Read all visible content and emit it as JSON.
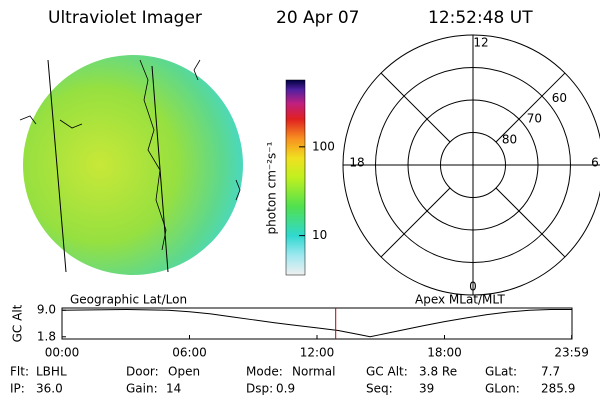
{
  "header": {
    "title": "Ultraviolet Imager",
    "date": "20 Apr 07",
    "time": "12:52:48 UT"
  },
  "left_panel": {
    "label": "Geographic Lat/Lon"
  },
  "colorbar": {
    "label": "photon cm⁻²s⁻¹",
    "scale": "log",
    "lim": [
      3.6,
      566
    ],
    "ticks": [
      10,
      100
    ]
  },
  "polar": {
    "label": "Apex MLat/MLT",
    "outer_lat": 50,
    "rings": [
      60,
      70,
      80
    ],
    "hours": [
      "12",
      "18",
      "6",
      "0"
    ]
  },
  "chart_data": {
    "type": "line",
    "ylabel": "GC Alt",
    "x": [
      0,
      3,
      5,
      6,
      7,
      8,
      9,
      10,
      11,
      12,
      13,
      14,
      14.5,
      15,
      16,
      17,
      18,
      19,
      20,
      21,
      22,
      23,
      24
    ],
    "series": [
      {
        "color": "#000000",
        "values": [
          9.0,
          9.2,
          9.0,
          8.6,
          8.0,
          7.2,
          6.4,
          5.6,
          4.9,
          4.2,
          3.5,
          2.4,
          1.8,
          2.4,
          3.6,
          4.8,
          5.9,
          6.9,
          7.8,
          8.5,
          9.0,
          9.2,
          9.2
        ]
      }
    ],
    "xlim": [
      0,
      24
    ],
    "ylim": [
      1.2,
      9.6
    ],
    "xticks": [
      {
        "value": 0,
        "label": "00:00"
      },
      {
        "value": 6,
        "label": "06:00"
      },
      {
        "value": 12,
        "label": "12:00"
      },
      {
        "value": 18,
        "label": "18:00"
      },
      {
        "value": 23.983,
        "label": "23:59"
      }
    ],
    "yticks": [
      {
        "value": 9.0,
        "label": "9.0"
      },
      1.8
    ],
    "marker_x": 12.88,
    "marker_color": "#c00000"
  },
  "footer": {
    "rows": [
      [
        [
          "Flt:",
          "LBHL"
        ],
        [
          "Door:",
          "Open"
        ],
        [
          "Mode:",
          "Normal"
        ],
        [
          "GC Alt:",
          "3.8 Re"
        ],
        [
          "GLat:",
          "7.7"
        ]
      ],
      [
        [
          "IP:",
          "36.0"
        ],
        [
          "Gain:",
          "14"
        ],
        [
          "Dsp:",
          "0.9"
        ],
        [
          "Seq:",
          "39"
        ],
        [
          "GLon:",
          "285.9"
        ]
      ]
    ]
  }
}
